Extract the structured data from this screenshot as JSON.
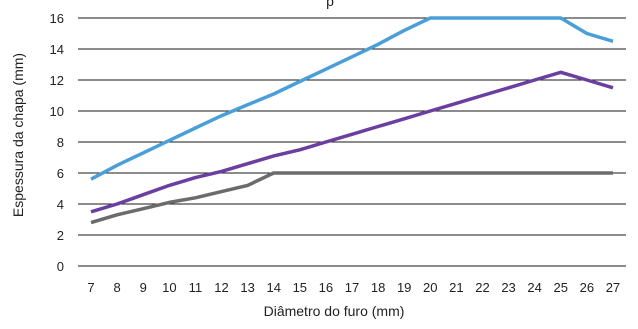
{
  "chart_data": {
    "type": "line",
    "title_fragment": "p",
    "xlabel": "Diâmetro do furo (mm)",
    "ylabel": "Espessura da chapa (mm)",
    "x": [
      7,
      8,
      9,
      10,
      11,
      12,
      13,
      14,
      15,
      16,
      17,
      18,
      19,
      20,
      21,
      22,
      23,
      24,
      25,
      26,
      27
    ],
    "ylim": [
      0,
      16
    ],
    "yticks": [
      0,
      2,
      4,
      6,
      8,
      10,
      12,
      14,
      16
    ],
    "grid": "horizontal",
    "series": [
      {
        "color": "#4a9fd8",
        "values": [
          5.6,
          6.5,
          7.3,
          8.1,
          8.9,
          9.7,
          10.4,
          11.1,
          11.9,
          12.7,
          13.5,
          14.3,
          15.2,
          16.0,
          16.0,
          16.0,
          16.0,
          16.0,
          16.0,
          15.0,
          14.5
        ]
      },
      {
        "color": "#6a3fa0",
        "values": [
          3.5,
          4.0,
          4.6,
          5.2,
          5.7,
          6.1,
          6.6,
          7.1,
          7.5,
          8.0,
          8.5,
          9.0,
          9.5,
          10.0,
          10.5,
          11.0,
          11.5,
          12.0,
          12.5,
          12.0,
          11.5
        ]
      },
      {
        "color": "#6b6b6b",
        "values": [
          2.8,
          3.3,
          3.7,
          4.1,
          4.4,
          4.8,
          5.2,
          6.0,
          6.0,
          6.0,
          6.0,
          6.0,
          6.0,
          6.0,
          6.0,
          6.0,
          6.0,
          6.0,
          6.0,
          6.0,
          6.0
        ]
      }
    ]
  }
}
